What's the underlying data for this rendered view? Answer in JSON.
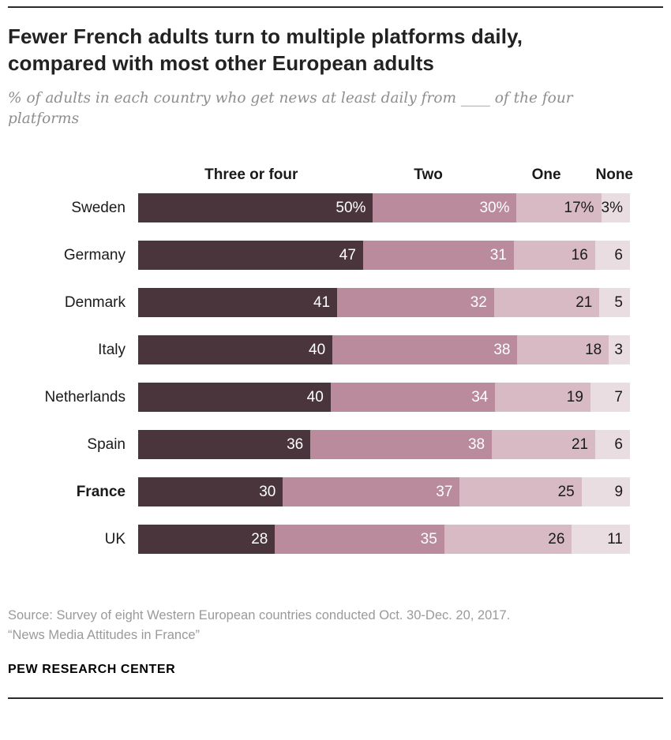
{
  "header": {
    "title_line1": "Fewer French adults turn to multiple platforms daily,",
    "title_line2": "compared with most other European adults",
    "subtitle": "% of adults in each country who get news at least daily from ____ of the four platforms"
  },
  "colors": {
    "segment_three_or_four": "#4a353d",
    "segment_two": "#b98b9d",
    "segment_one": "#d8bac4",
    "segment_none": "#e9dde1",
    "label_on_dark": "#ffffff",
    "label_on_light": "#1a1a1a"
  },
  "chart_data": {
    "type": "bar",
    "stacked": true,
    "orientation": "horizontal",
    "bold_category": "France",
    "categories": [
      "Sweden",
      "Germany",
      "Denmark",
      "Italy",
      "Netherlands",
      "Spain",
      "France",
      "UK"
    ],
    "series": [
      {
        "name": "Three or four",
        "key": "three-or-four",
        "color": "#4a353d",
        "label_color": "#ffffff",
        "values": [
          50,
          47,
          41,
          40,
          40,
          36,
          30,
          28
        ]
      },
      {
        "name": "Two",
        "key": "two",
        "color": "#b98b9d",
        "label_color": "#ffffff",
        "values": [
          30,
          31,
          32,
          38,
          34,
          38,
          37,
          35
        ]
      },
      {
        "name": "One",
        "key": "one",
        "color": "#d8bac4",
        "label_color": "#1a1a1a",
        "values": [
          17,
          16,
          21,
          18,
          19,
          21,
          25,
          26
        ]
      },
      {
        "name": "None",
        "key": "none",
        "color": "#e9dde1",
        "label_color": "#1a1a1a",
        "values": [
          3,
          6,
          5,
          3,
          7,
          6,
          9,
          11
        ]
      }
    ],
    "display_labels": [
      [
        "50%",
        "30%",
        "17%",
        "3%"
      ],
      [
        "47",
        "31",
        "16",
        "6"
      ],
      [
        "41",
        "32",
        "21",
        "5"
      ],
      [
        "40",
        "38",
        "18",
        "3"
      ],
      [
        "40",
        "34",
        "19",
        "7"
      ],
      [
        "36",
        "38",
        "21",
        "6"
      ],
      [
        "30",
        "37",
        "25",
        "9"
      ],
      [
        "28",
        "35",
        "26",
        "11"
      ]
    ],
    "xlim": [
      0,
      100
    ],
    "grid": false,
    "legend_position": "top-inline-headers"
  },
  "footer": {
    "source_line1": "Source: Survey of eight Western European countries conducted Oct. 30-Dec. 20, 2017.",
    "source_line2": "“News Media Attitudes in France”",
    "brand": "PEW RESEARCH CENTER"
  }
}
